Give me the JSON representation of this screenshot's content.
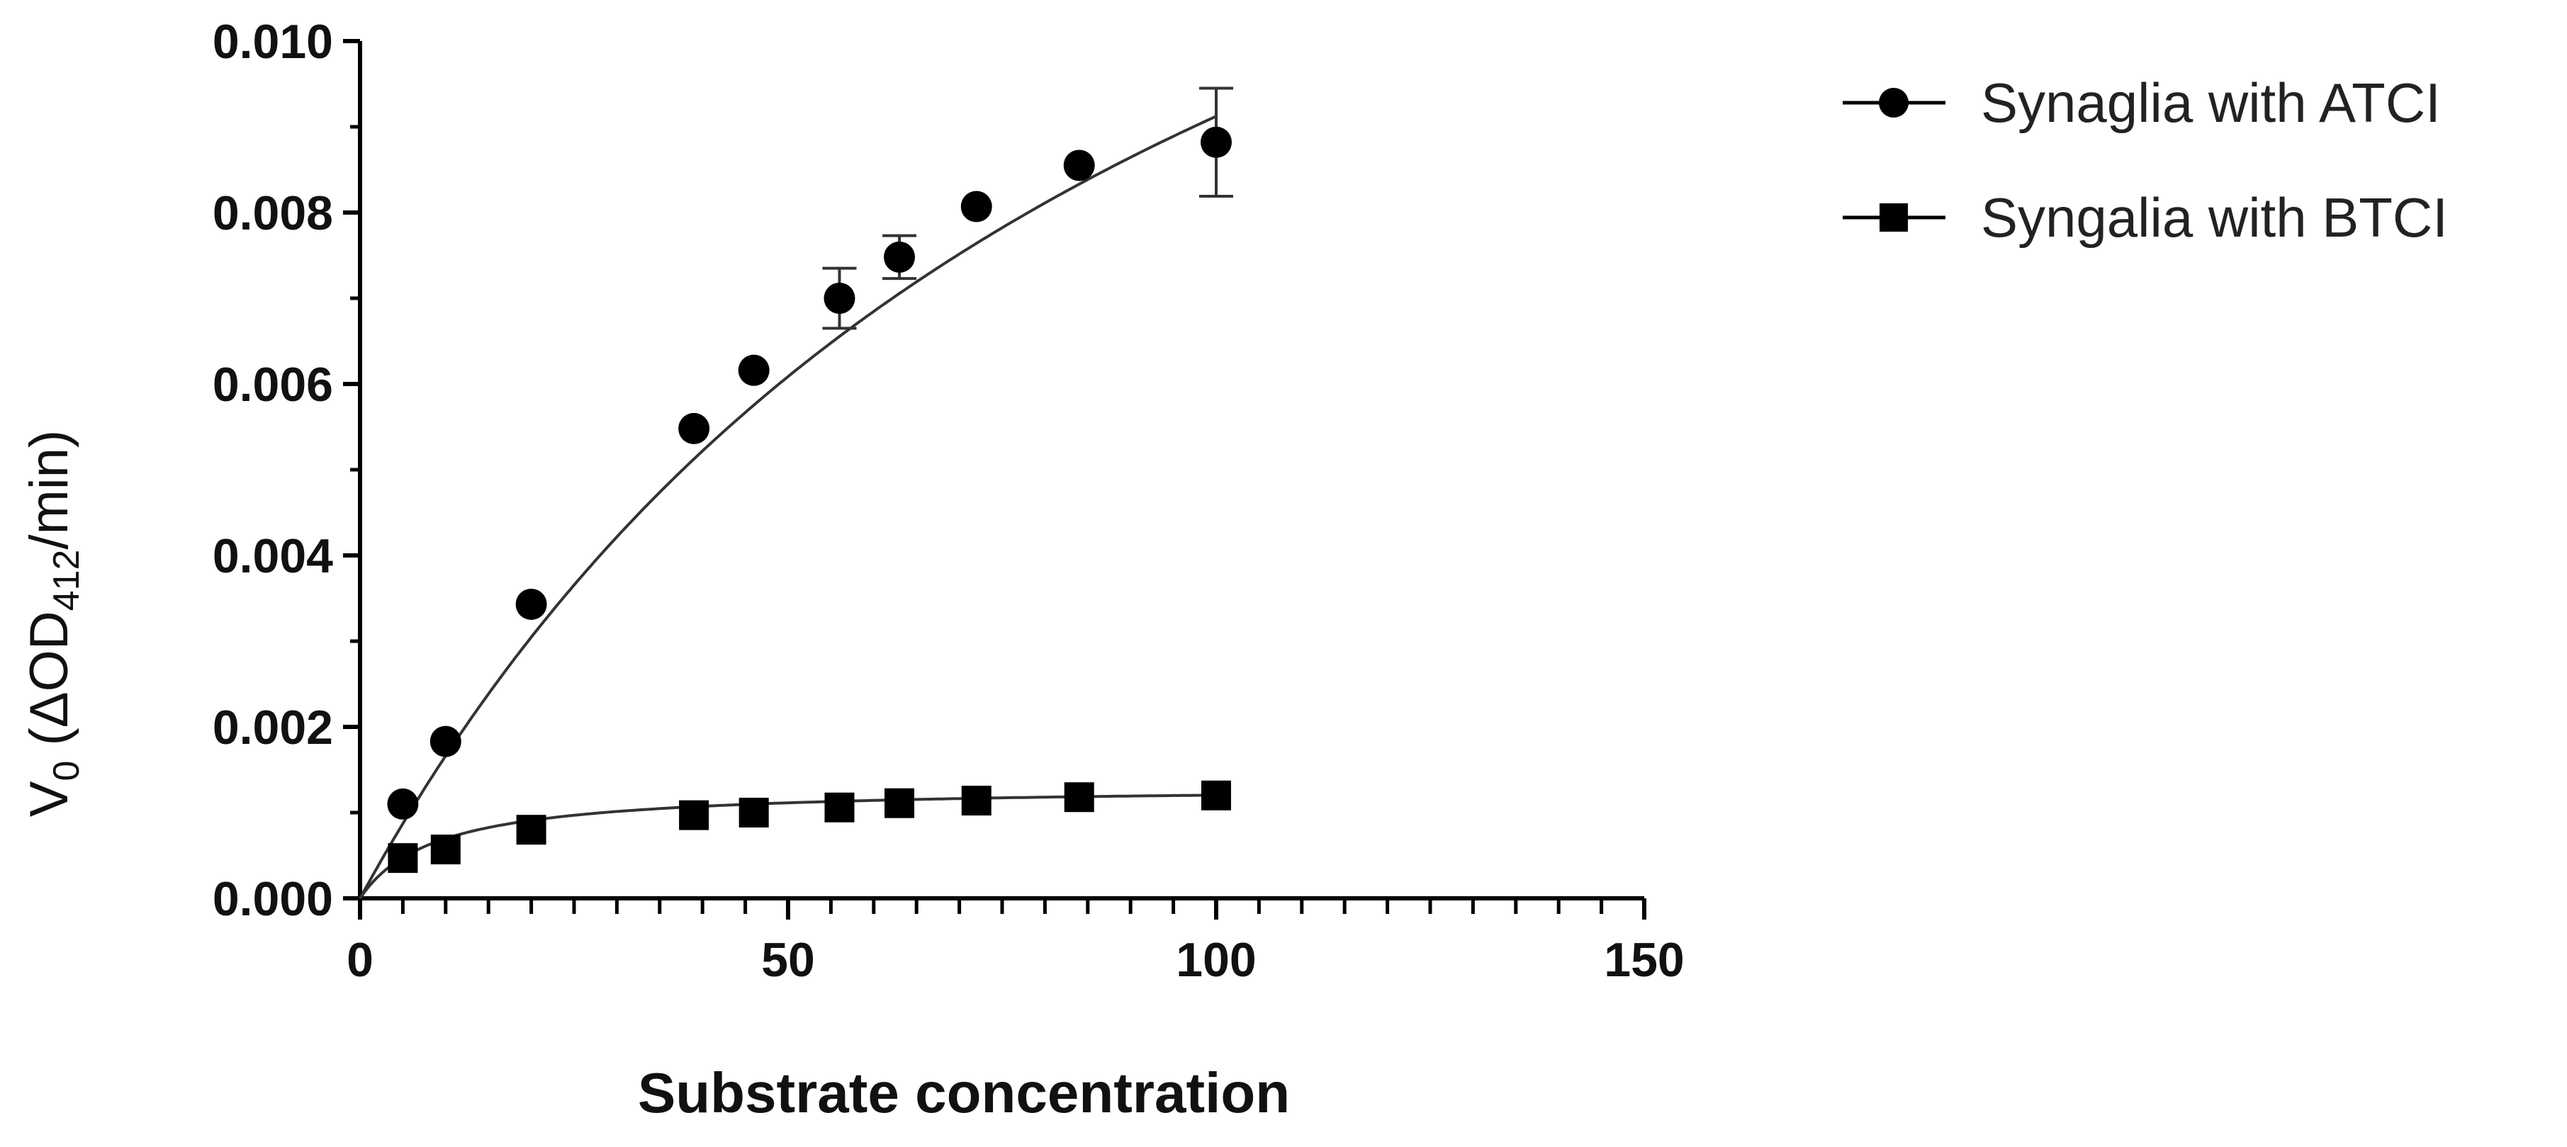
{
  "chart_data": {
    "type": "scatter",
    "title": "",
    "xlabel": "Substrate concentration",
    "ylabel": {
      "main": "V",
      "main_subscript": "0",
      "open": " (ΔOD",
      "unit_subscript": "412",
      "close": "/min)"
    },
    "xlim": [
      0,
      150
    ],
    "ylim": [
      0,
      0.01
    ],
    "x_tick_labels": [
      "0",
      "50",
      "100",
      "150"
    ],
    "y_tick_labels": [
      "0.000",
      "0.002",
      "0.004",
      "0.006",
      "0.008",
      "0.010"
    ],
    "grid": false,
    "legend_position": "top-right, outside plot",
    "series": [
      {
        "name": "Synaglia with ATCI",
        "marker": "circle",
        "color": "#000000",
        "x": [
          5,
          10,
          20,
          39,
          46,
          56,
          63,
          72,
          84,
          100
        ],
        "y": [
          0.0011,
          0.00183,
          0.00343,
          0.00548,
          0.00616,
          0.007,
          0.00748,
          0.00807,
          0.00855,
          0.00882
        ],
        "error": [
          0,
          0,
          0,
          0,
          0,
          0.00035,
          0.00025,
          0,
          0,
          0.00063
        ],
        "fit": {
          "model": "michaelis-menten",
          "vmax": 0.0182,
          "km": 99.5
        }
      },
      {
        "name": "Syngalia with BTCI",
        "marker": "square",
        "color": "#000000",
        "x": [
          5,
          10,
          20,
          39,
          46,
          56,
          63,
          72,
          84,
          100
        ],
        "y": [
          0.00047,
          0.00057,
          0.0008,
          0.00097,
          0.001,
          0.00106,
          0.00111,
          0.00114,
          0.00118,
          0.0012
        ],
        "error": [
          0,
          0,
          0,
          0,
          0,
          0,
          0,
          0,
          0,
          0
        ],
        "fit": {
          "model": "michaelis-menten",
          "vmax": 0.00131,
          "km": 8.8
        }
      }
    ]
  }
}
